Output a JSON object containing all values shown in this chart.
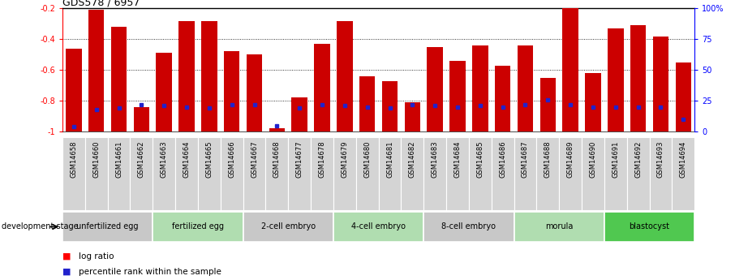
{
  "title": "GDS578 / 6957",
  "samples": [
    "GSM14658",
    "GSM14660",
    "GSM14661",
    "GSM14662",
    "GSM14663",
    "GSM14664",
    "GSM14665",
    "GSM14666",
    "GSM14667",
    "GSM14668",
    "GSM14677",
    "GSM14678",
    "GSM14679",
    "GSM14680",
    "GSM14681",
    "GSM14682",
    "GSM14683",
    "GSM14684",
    "GSM14685",
    "GSM14686",
    "GSM14687",
    "GSM14688",
    "GSM14689",
    "GSM14690",
    "GSM14691",
    "GSM14692",
    "GSM14693",
    "GSM14694"
  ],
  "log_ratio": [
    -0.46,
    -0.21,
    -0.32,
    -0.84,
    -0.49,
    -0.28,
    -0.28,
    -0.48,
    -0.5,
    -0.98,
    -0.78,
    -0.43,
    -0.28,
    -0.64,
    -0.67,
    -0.81,
    -0.45,
    -0.54,
    -0.44,
    -0.57,
    -0.44,
    -0.65,
    -0.2,
    -0.62,
    -0.33,
    -0.31,
    -0.38,
    -0.55
  ],
  "percentile": [
    4,
    18,
    19,
    22,
    21,
    20,
    19,
    22,
    22,
    5,
    19,
    22,
    21,
    20,
    19,
    22,
    21,
    20,
    21,
    20,
    22,
    26,
    22,
    20,
    20,
    20,
    20,
    10
  ],
  "stages": [
    {
      "label": "unfertilized egg",
      "start": 0,
      "end": 4,
      "color": "#c8c8c8"
    },
    {
      "label": "fertilized egg",
      "start": 4,
      "end": 8,
      "color": "#b0ddb0"
    },
    {
      "label": "2-cell embryo",
      "start": 8,
      "end": 12,
      "color": "#c8c8c8"
    },
    {
      "label": "4-cell embryo",
      "start": 12,
      "end": 16,
      "color": "#b0ddb0"
    },
    {
      "label": "8-cell embryo",
      "start": 16,
      "end": 20,
      "color": "#c8c8c8"
    },
    {
      "label": "morula",
      "start": 20,
      "end": 24,
      "color": "#b0ddb0"
    },
    {
      "label": "blastocyst",
      "start": 24,
      "end": 28,
      "color": "#50c850"
    }
  ],
  "ylim_left": [
    -1.0,
    -0.2
  ],
  "ylim_right": [
    0,
    100
  ],
  "bar_color": "#cc0000",
  "percentile_color": "#2222cc",
  "background_color": "#ffffff",
  "title_fontsize": 9,
  "tick_fontsize": 7,
  "sample_fontsize": 6
}
